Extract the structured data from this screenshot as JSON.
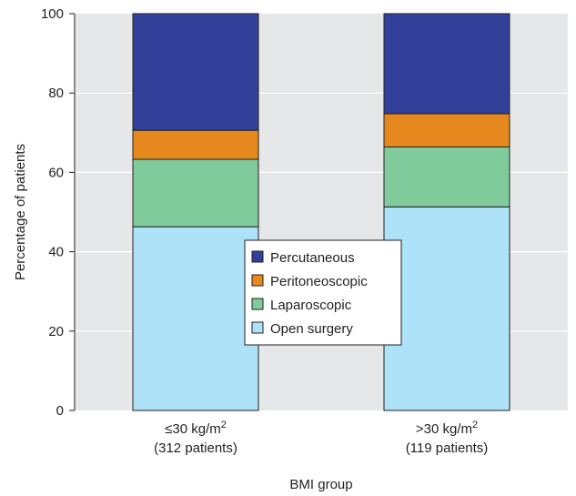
{
  "chart_data": {
    "type": "bar",
    "stacked": true,
    "title": "",
    "xlabel": "BMI group",
    "ylabel": "Percentage of patients",
    "ylim": [
      0,
      100
    ],
    "yticks": [
      "0",
      "20",
      "40",
      "60",
      "80",
      "100"
    ],
    "grid": true,
    "legend_position": "center",
    "categories": [
      {
        "label": "≤30 kg/m",
        "sup": "2",
        "sub": "(312 patients)"
      },
      {
        "label": ">30 kg/m",
        "sup": "2",
        "sub": "(119 patients)"
      }
    ],
    "series": [
      {
        "name": "Open surgery",
        "color": "#aee2f8",
        "values": [
          46.3,
          51.3
        ]
      },
      {
        "name": "Laparoscopic",
        "color": "#80cb9c",
        "values": [
          17.0,
          15.1
        ]
      },
      {
        "name": "Peritoneoscopic",
        "color": "#e5891e",
        "values": [
          7.3,
          8.4
        ]
      },
      {
        "name": "Percutaneous",
        "color": "#33409a",
        "values": [
          29.4,
          25.2
        ]
      }
    ],
    "legend_order": [
      "Percutaneous",
      "Peritoneoscopic",
      "Laparoscopic",
      "Open surgery"
    ],
    "plot_background": "#e6e7e8",
    "grid_color": "#ffffff"
  }
}
